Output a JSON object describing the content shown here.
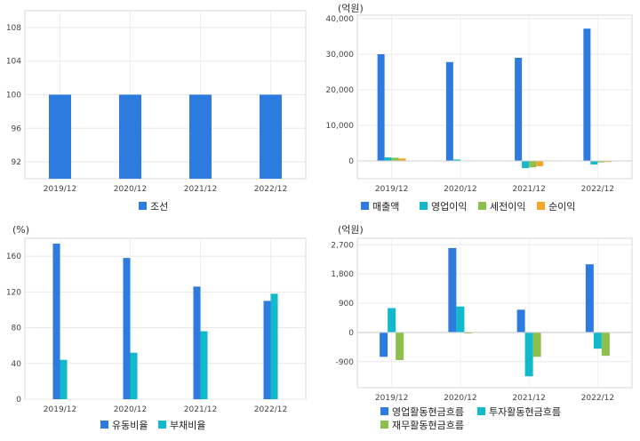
{
  "chart_data": [
    {
      "type": "bar",
      "unit_label": "",
      "categories": [
        "2019/12",
        "2020/12",
        "2021/12",
        "2022/12"
      ],
      "series": [
        {
          "name": "조선",
          "color": "#2e7be0",
          "values": [
            100,
            100,
            100,
            100
          ]
        }
      ],
      "ylim": [
        90,
        110
      ],
      "yticks": [
        92,
        96,
        100,
        104,
        108
      ],
      "ytick_labels": [
        "92",
        "96",
        "100",
        "104",
        "108"
      ],
      "grid": true,
      "legend": "bottom"
    },
    {
      "type": "bar",
      "unit_label": "(억원)",
      "categories": [
        "2019/12",
        "2020/12",
        "2021/12",
        "2022/12"
      ],
      "series": [
        {
          "name": "매출액",
          "color": "#2e7be0",
          "values": [
            30000,
            27800,
            29000,
            37200
          ]
        },
        {
          "name": "영업이익",
          "color": "#12b9cb",
          "values": [
            1000,
            400,
            -2000,
            -1000
          ]
        },
        {
          "name": "세전이익",
          "color": "#8cbf4c",
          "values": [
            900,
            0,
            -1800,
            -400
          ]
        },
        {
          "name": "순이익",
          "color": "#f2a72b",
          "values": [
            700,
            0,
            -1500,
            -300
          ]
        }
      ],
      "ylim": [
        -5000,
        41000
      ],
      "yticks": [
        0,
        10000,
        20000,
        30000,
        40000
      ],
      "ytick_labels": [
        "0",
        "10,000",
        "20,000",
        "30,000",
        "40,000"
      ],
      "grid": true,
      "legend": "bottom"
    },
    {
      "type": "bar",
      "unit_label": "(%)",
      "categories": [
        "2019/12",
        "2020/12",
        "2021/12",
        "2022/12"
      ],
      "series": [
        {
          "name": "유동비율",
          "color": "#2e7be0",
          "values": [
            174,
            158,
            126,
            110
          ]
        },
        {
          "name": "부채비율",
          "color": "#12b9cb",
          "values": [
            44,
            52,
            76,
            118
          ]
        }
      ],
      "ylim": [
        0,
        180
      ],
      "yticks": [
        0,
        40,
        80,
        120,
        160
      ],
      "ytick_labels": [
        "0",
        "40",
        "80",
        "120",
        "160"
      ],
      "grid": true,
      "legend": "bottom"
    },
    {
      "type": "bar",
      "unit_label": "(억원)",
      "categories": [
        "2019/12",
        "2020/12",
        "2021/12",
        "2022/12"
      ],
      "series": [
        {
          "name": "영업활동현금흐름",
          "color": "#2e7be0",
          "values": [
            -750,
            2600,
            700,
            2100
          ]
        },
        {
          "name": "투자활동현금흐름",
          "color": "#12b9cb",
          "values": [
            750,
            800,
            -1350,
            -500
          ]
        },
        {
          "name": "재무활동현금흐름",
          "color": "#8cbf4c",
          "values": [
            -850,
            -30,
            -750,
            -720
          ]
        }
      ],
      "ylim": [
        -1700,
        2900
      ],
      "yticks": [
        -900,
        0,
        900,
        1800,
        2700
      ],
      "ytick_labels": [
        "-900",
        "0",
        "900",
        "1,800",
        "2,700"
      ],
      "grid": true,
      "legend": "bottom"
    }
  ]
}
